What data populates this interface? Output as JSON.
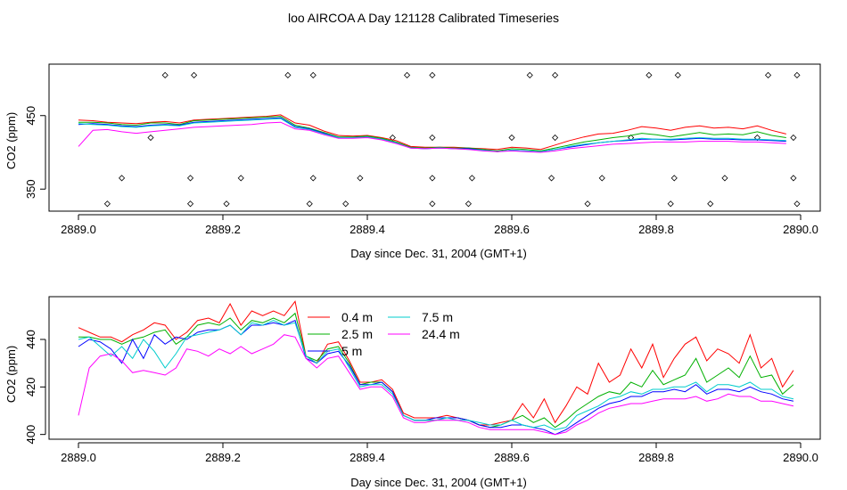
{
  "chart_data": [
    {
      "type": "line",
      "title": "loo AIRCOA A  Day 121128  Calibrated Timeseries",
      "xlabel": "Day since Dec. 31, 2004 (GMT+1)",
      "ylabel": "CO2 (ppm)",
      "xlim": [
        2889.0,
        2890.0
      ],
      "ylim": [
        320,
        520
      ],
      "xticks": [
        2889.0,
        2889.2,
        2889.4,
        2889.6,
        2889.8,
        2890.0
      ],
      "xtick_labels": [
        "2889.0",
        "2889.2",
        "2889.4",
        "2889.6",
        "2889.8",
        "2890.0"
      ],
      "yticks": [
        350,
        450
      ],
      "ytick_labels": [
        "350",
        "450"
      ],
      "x": [
        2889.0,
        2889.02,
        2889.04,
        2889.06,
        2889.08,
        2889.1,
        2889.12,
        2889.14,
        2889.16,
        2889.18,
        2889.2,
        2889.22,
        2889.24,
        2889.26,
        2889.28,
        2889.3,
        2889.32,
        2889.34,
        2889.36,
        2889.38,
        2889.4,
        2889.42,
        2889.44,
        2889.46,
        2889.48,
        2889.5,
        2889.52,
        2889.54,
        2889.56,
        2889.58,
        2889.6,
        2889.62,
        2889.64,
        2889.66,
        2889.68,
        2889.7,
        2889.72,
        2889.74,
        2889.76,
        2889.78,
        2889.8,
        2889.82,
        2889.84,
        2889.86,
        2889.88,
        2889.9,
        2889.92,
        2889.94,
        2889.96,
        2889.98
      ],
      "series": [
        {
          "name": "0.4 m",
          "color": "#ff0000",
          "values": [
            444,
            443,
            441,
            440,
            439,
            441,
            442,
            440,
            444,
            445,
            446,
            447,
            448,
            449,
            451,
            440,
            437,
            429,
            423,
            422,
            423,
            420,
            416,
            408,
            407,
            407,
            407,
            406,
            405,
            404,
            407,
            406,
            404,
            410,
            416,
            421,
            425,
            426,
            430,
            435,
            433,
            430,
            434,
            436,
            433,
            434,
            432,
            436,
            430,
            425
          ]
        },
        {
          "name": "2.5 m",
          "color": "#00b000",
          "values": [
            441,
            441,
            440,
            438,
            437,
            440,
            440,
            438,
            443,
            444,
            445,
            446,
            447,
            448,
            449,
            437,
            433,
            427,
            421,
            421,
            422,
            419,
            414,
            407,
            406,
            407,
            406,
            406,
            404,
            402,
            405,
            404,
            402,
            406,
            410,
            414,
            417,
            420,
            422,
            426,
            424,
            421,
            424,
            427,
            424,
            425,
            424,
            428,
            423,
            420
          ]
        },
        {
          "name": "5 m",
          "color": "#0000ff",
          "values": [
            438,
            439,
            438,
            436,
            435,
            437,
            438,
            437,
            441,
            442,
            443,
            444,
            445,
            446,
            447,
            435,
            432,
            426,
            420,
            420,
            421,
            418,
            413,
            406,
            405,
            406,
            405,
            405,
            403,
            401,
            403,
            402,
            401,
            404,
            407,
            410,
            413,
            415,
            416,
            418,
            418,
            417,
            418,
            419,
            418,
            418,
            417,
            417,
            416,
            415
          ]
        },
        {
          "name": "7.5 m",
          "color": "#00cccc",
          "values": [
            439,
            438,
            437,
            435,
            434,
            436,
            437,
            436,
            440,
            441,
            442,
            443,
            444,
            445,
            446,
            434,
            431,
            425,
            420,
            420,
            421,
            418,
            413,
            406,
            405,
            406,
            405,
            404,
            403,
            401,
            403,
            402,
            401,
            404,
            408,
            411,
            413,
            415,
            417,
            419,
            418,
            418,
            419,
            420,
            419,
            419,
            418,
            418,
            417,
            416
          ]
        },
        {
          "name": "24.4 m",
          "color": "#ff00ff",
          "values": [
            408,
            430,
            431,
            428,
            426,
            428,
            430,
            432,
            434,
            435,
            436,
            437,
            438,
            440,
            441,
            432,
            430,
            424,
            419,
            419,
            420,
            417,
            412,
            406,
            405,
            406,
            405,
            404,
            402,
            401,
            402,
            401,
            400,
            402,
            405,
            407,
            409,
            411,
            412,
            413,
            414,
            414,
            414,
            415,
            415,
            415,
            414,
            414,
            413,
            412
          ]
        }
      ],
      "points_note": "",
      "points_x": [
        2889.04,
        2889.06,
        2889.1,
        2889.12,
        2889.155,
        2889.155,
        2889.16,
        2889.205,
        2889.225,
        2889.29,
        2889.32,
        2889.325,
        2889.325,
        2889.37,
        2889.39,
        2889.435,
        2889.455,
        2889.49,
        2889.49,
        2889.49,
        2889.49,
        2889.54,
        2889.545,
        2889.6,
        2889.625,
        2889.655,
        2889.66,
        2889.66,
        2889.705,
        2889.725,
        2889.765,
        2889.79,
        2889.82,
        2889.825,
        2889.83,
        2889.875,
        2889.895,
        2889.94,
        2889.955,
        2889.99,
        2889.99,
        2889.995,
        2889.995
      ],
      "points_y": [
        330,
        365,
        420,
        505,
        330,
        365,
        505,
        330,
        365,
        505,
        330,
        365,
        505,
        330,
        365,
        420,
        505,
        330,
        365,
        420,
        505,
        330,
        365,
        420,
        505,
        365,
        420,
        505,
        330,
        365,
        420,
        505,
        330,
        365,
        505,
        330,
        365,
        420,
        505,
        365,
        420,
        330,
        505
      ]
    },
    {
      "type": "line",
      "xlabel": "Day since Dec. 31, 2004 (GMT+1)",
      "ylabel": "CO2 (ppm)",
      "xlim": [
        2889.0,
        2890.0
      ],
      "ylim": [
        398,
        458
      ],
      "xticks": [
        2889.0,
        2889.2,
        2889.4,
        2889.6,
        2889.8,
        2890.0
      ],
      "xtick_labels": [
        "2889.0",
        "2889.2",
        "2889.4",
        "2889.6",
        "2889.8",
        "2890.0"
      ],
      "yticks": [
        400,
        420,
        440
      ],
      "ytick_labels": [
        "400",
        "420",
        "440"
      ],
      "x": [
        2889.0,
        2889.015,
        2889.03,
        2889.045,
        2889.06,
        2889.075,
        2889.09,
        2889.105,
        2889.12,
        2889.135,
        2889.15,
        2889.165,
        2889.18,
        2889.195,
        2889.21,
        2889.225,
        2889.24,
        2889.255,
        2889.27,
        2889.285,
        2889.3,
        2889.315,
        2889.33,
        2889.345,
        2889.36,
        2889.375,
        2889.39,
        2889.405,
        2889.42,
        2889.435,
        2889.45,
        2889.465,
        2889.48,
        2889.495,
        2889.51,
        2889.525,
        2889.54,
        2889.555,
        2889.57,
        2889.585,
        2889.6,
        2889.615,
        2889.63,
        2889.645,
        2889.66,
        2889.675,
        2889.69,
        2889.705,
        2889.72,
        2889.735,
        2889.75,
        2889.765,
        2889.78,
        2889.795,
        2889.81,
        2889.825,
        2889.84,
        2889.855,
        2889.87,
        2889.885,
        2889.9,
        2889.915,
        2889.93,
        2889.945,
        2889.96,
        2889.975,
        2889.99
      ],
      "series": [
        {
          "name": "0.4 m",
          "color": "#ff0000",
          "values": [
            445,
            443,
            441,
            441,
            439,
            442,
            444,
            447,
            446,
            440,
            443,
            448,
            449,
            447,
            455,
            446,
            452,
            450,
            452,
            450,
            456,
            433,
            430,
            438,
            439,
            431,
            422,
            422,
            423,
            419,
            409,
            407,
            407,
            407,
            408,
            407,
            406,
            404,
            404,
            405,
            406,
            413,
            407,
            415,
            405,
            412,
            420,
            417,
            430,
            422,
            425,
            436,
            428,
            438,
            424,
            432,
            438,
            441,
            431,
            436,
            434,
            430,
            442,
            428,
            432,
            420,
            427
          ]
        },
        {
          "name": "2.5 m",
          "color": "#00b000",
          "values": [
            441,
            441,
            440,
            440,
            438,
            440,
            441,
            443,
            444,
            438,
            441,
            446,
            447,
            446,
            449,
            444,
            448,
            447,
            449,
            447,
            451,
            433,
            431,
            436,
            437,
            430,
            421,
            422,
            422,
            418,
            408,
            406,
            406,
            406,
            407,
            407,
            406,
            404,
            403,
            404,
            406,
            408,
            405,
            407,
            403,
            406,
            410,
            413,
            416,
            418,
            417,
            422,
            420,
            427,
            421,
            423,
            425,
            432,
            422,
            425,
            428,
            424,
            433,
            424,
            425,
            417,
            421
          ]
        },
        {
          "name": "5 m",
          "color": "#0000ff",
          "values": [
            437,
            440,
            439,
            436,
            430,
            440,
            432,
            442,
            438,
            441,
            440,
            443,
            444,
            444,
            446,
            442,
            446,
            446,
            447,
            446,
            448,
            432,
            430,
            434,
            435,
            429,
            421,
            421,
            422,
            418,
            408,
            406,
            406,
            407,
            407,
            407,
            406,
            404,
            403,
            403,
            404,
            404,
            403,
            402,
            400,
            402,
            405,
            408,
            411,
            413,
            414,
            416,
            416,
            418,
            418,
            419,
            418,
            421,
            417,
            419,
            419,
            418,
            420,
            418,
            417,
            415,
            414
          ]
        },
        {
          "name": "7.5 m",
          "color": "#00cccc",
          "values": [
            440,
            441,
            437,
            433,
            437,
            432,
            440,
            435,
            428,
            434,
            441,
            442,
            443,
            444,
            446,
            442,
            447,
            446,
            448,
            446,
            447,
            433,
            430,
            435,
            436,
            428,
            420,
            421,
            421,
            417,
            408,
            406,
            406,
            406,
            407,
            406,
            406,
            405,
            404,
            404,
            406,
            404,
            403,
            404,
            402,
            403,
            408,
            410,
            412,
            415,
            416,
            418,
            417,
            419,
            419,
            420,
            420,
            422,
            418,
            421,
            421,
            420,
            422,
            419,
            419,
            416,
            415
          ]
        },
        {
          "name": "24.4 m",
          "color": "#ff00ff",
          "values": [
            408,
            428,
            433,
            434,
            431,
            426,
            427,
            426,
            425,
            428,
            436,
            435,
            433,
            436,
            434,
            437,
            434,
            436,
            438,
            442,
            441,
            432,
            428,
            432,
            433,
            426,
            419,
            420,
            420,
            416,
            407,
            405,
            405,
            406,
            406,
            406,
            405,
            403,
            402,
            402,
            402,
            402,
            402,
            401,
            400,
            401,
            404,
            406,
            409,
            411,
            412,
            413,
            413,
            414,
            415,
            415,
            415,
            416,
            414,
            415,
            417,
            416,
            416,
            414,
            414,
            413,
            412
          ]
        }
      ]
    }
  ]
}
